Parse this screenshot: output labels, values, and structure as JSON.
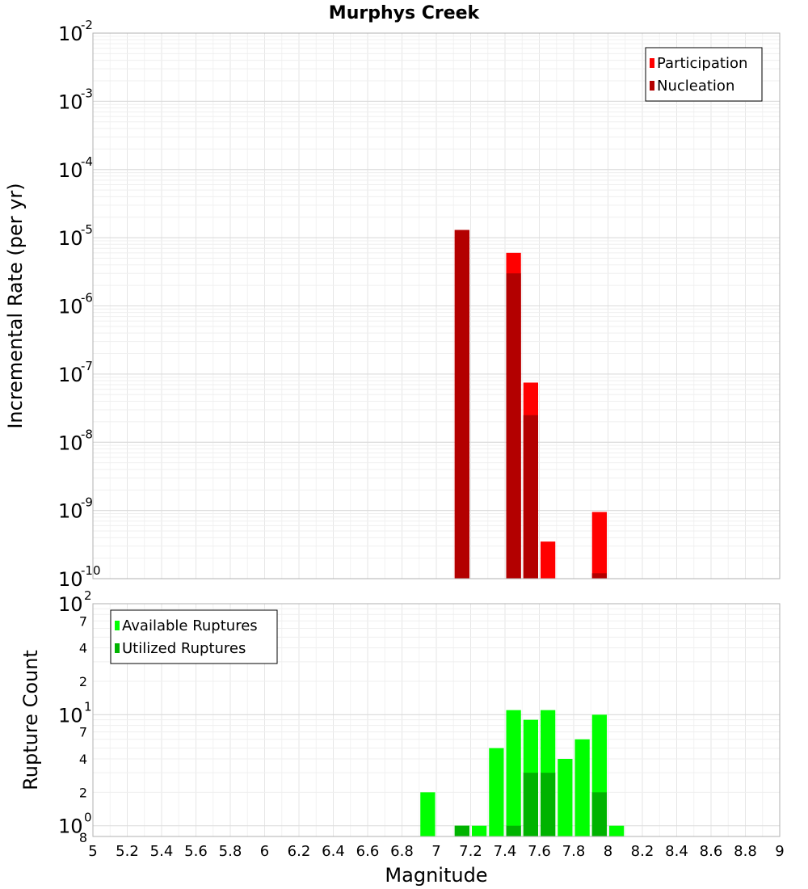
{
  "chart_data": [
    {
      "type": "bar",
      "title": "Murphys Creek",
      "ylabel": "Incremental Rate (per yr)",
      "xlabel": "",
      "x_range": [
        5,
        9
      ],
      "y_scale": "log",
      "ylim": [
        1e-10,
        0.01
      ],
      "y_ticks": [
        {
          "base": "10",
          "exp": "-2"
        },
        {
          "base": "10",
          "exp": "-3"
        },
        {
          "base": "10",
          "exp": "-4"
        },
        {
          "base": "10",
          "exp": "-5"
        },
        {
          "base": "10",
          "exp": "-6"
        },
        {
          "base": "10",
          "exp": "-7"
        },
        {
          "base": "10",
          "exp": "-8"
        },
        {
          "base": "10",
          "exp": "-9"
        },
        {
          "base": "10",
          "exp": "-10"
        }
      ],
      "grid": true,
      "legend_position": "top-right",
      "bin_width": 0.1,
      "series": [
        {
          "name": "Participation",
          "color": "#ff0000",
          "points": [
            [
              7.15,
              1.3e-05
            ],
            [
              7.45,
              6e-06
            ],
            [
              7.55,
              7.5e-08
            ],
            [
              7.65,
              3.5e-10
            ],
            [
              7.95,
              9.5e-10
            ]
          ]
        },
        {
          "name": "Nucleation",
          "color": "#b30000",
          "points": [
            [
              7.15,
              1.3e-05
            ],
            [
              7.45,
              3e-06
            ],
            [
              7.55,
              2.5e-08
            ],
            [
              7.95,
              1.2e-10
            ]
          ]
        }
      ]
    },
    {
      "type": "bar",
      "title": "",
      "ylabel": "Rupture Count",
      "xlabel": "Magnitude",
      "x_range": [
        5,
        9
      ],
      "x_tick_labels": [
        "5",
        "5.2",
        "5.4",
        "5.6",
        "5.8",
        "6",
        "6.2",
        "6.4",
        "6.6",
        "6.8",
        "7",
        "7.2",
        "7.4",
        "7.6",
        "7.8",
        "8",
        "8.2",
        "8.4",
        "8.6",
        "8.8",
        "9"
      ],
      "y_scale": "log",
      "ylim": [
        0.8,
        100
      ],
      "y_major_ticks": [
        {
          "base": "10",
          "exp": "0"
        },
        {
          "base": "10",
          "exp": "1"
        },
        {
          "base": "10",
          "exp": "2"
        }
      ],
      "y_minor_labels": [
        "2",
        "4",
        "7",
        "2",
        "4",
        "7"
      ],
      "y_min_label": "8",
      "grid": true,
      "legend_position": "top-left",
      "bin_width": 0.1,
      "series": [
        {
          "name": "Available Ruptures",
          "color": "#00ff00",
          "points": [
            [
              6.95,
              2
            ],
            [
              7.15,
              1
            ],
            [
              7.25,
              1
            ],
            [
              7.35,
              5
            ],
            [
              7.45,
              11
            ],
            [
              7.55,
              9
            ],
            [
              7.65,
              11
            ],
            [
              7.75,
              4
            ],
            [
              7.85,
              6
            ],
            [
              7.95,
              10
            ],
            [
              8.05,
              1
            ]
          ]
        },
        {
          "name": "Utilized Ruptures",
          "color": "#00b300",
          "points": [
            [
              7.15,
              1
            ],
            [
              7.45,
              1
            ],
            [
              7.55,
              3
            ],
            [
              7.65,
              3
            ],
            [
              7.95,
              2
            ]
          ]
        }
      ]
    }
  ]
}
